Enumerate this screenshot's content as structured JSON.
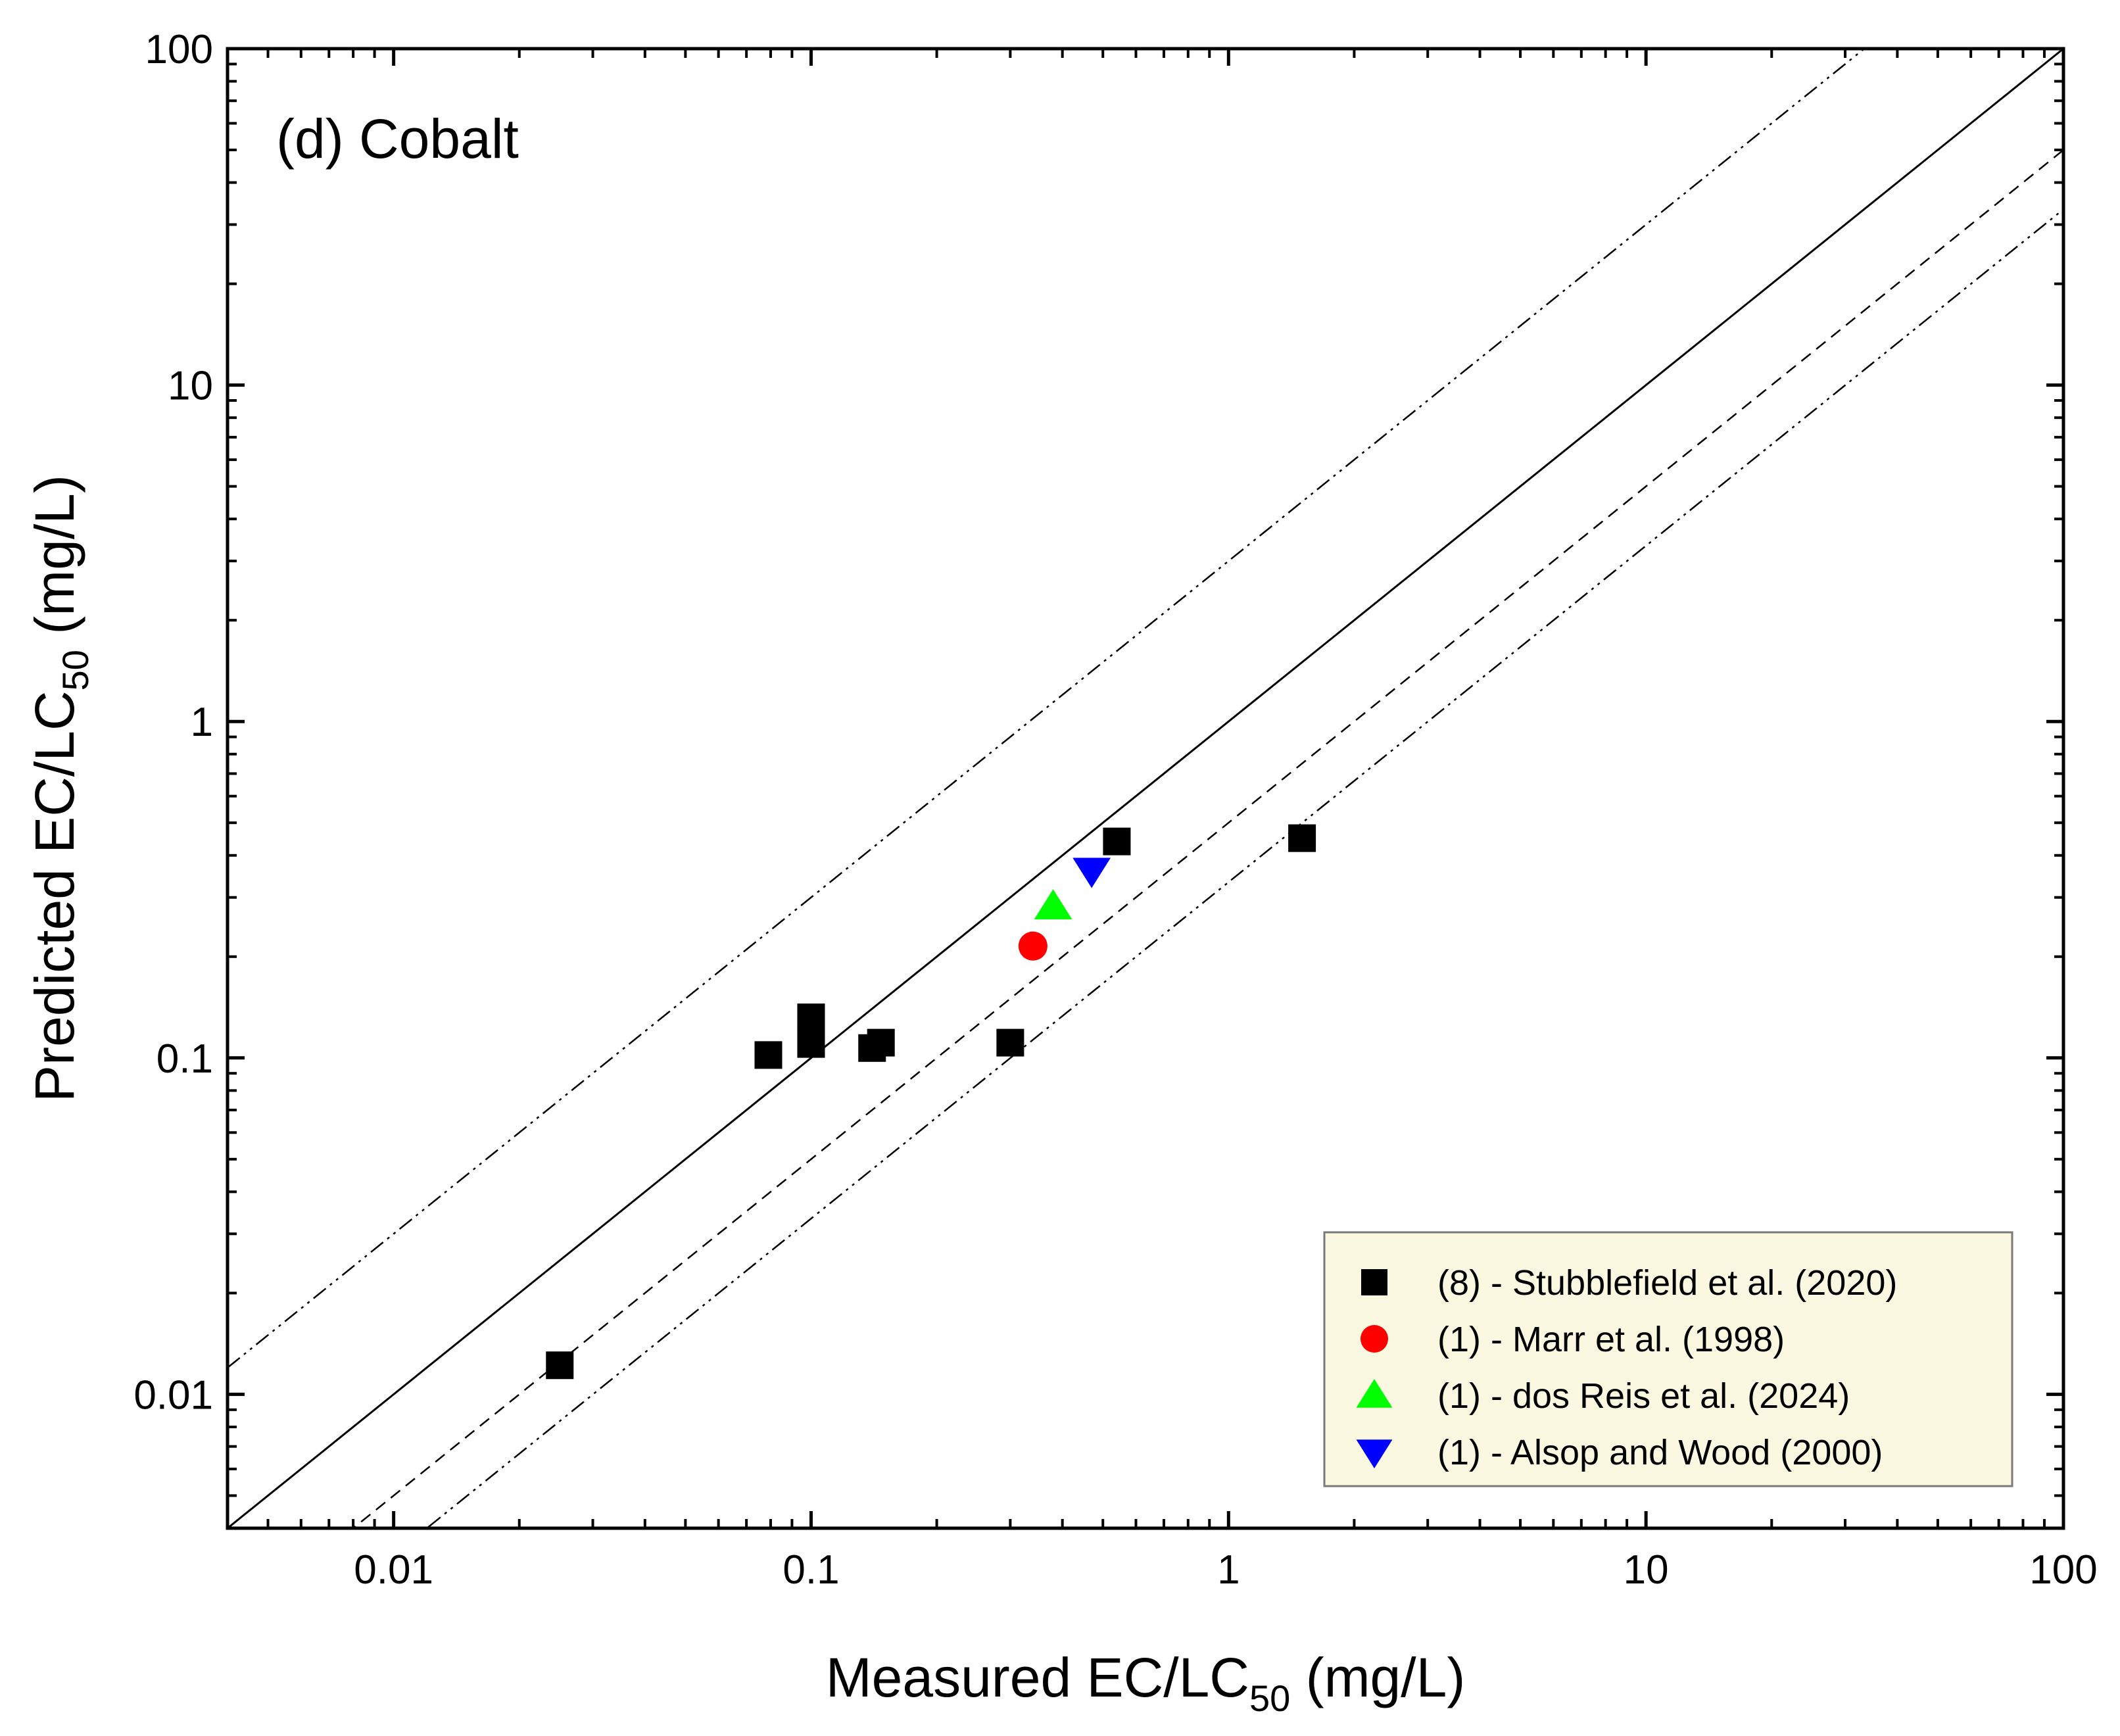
{
  "chart_data": {
    "type": "scatter",
    "panel_label": "(d) Cobalt",
    "xlabel": {
      "main": "Measured EC/LC",
      "sub": "50",
      "unit": " (mg/L)"
    },
    "ylabel": {
      "main": "Predicted EC/LC",
      "sub": "50",
      "unit": " (mg/L)"
    },
    "x_scale": "log",
    "y_scale": "log",
    "xlim": [
      0.004,
      100
    ],
    "ylim": [
      0.004,
      100
    ],
    "x_ticks": [
      {
        "value": 0.01,
        "label": "0.01"
      },
      {
        "value": 0.1,
        "label": "0.1"
      },
      {
        "value": 1,
        "label": "1"
      },
      {
        "value": 10,
        "label": "10"
      },
      {
        "value": 100,
        "label": "100"
      }
    ],
    "y_ticks": [
      {
        "value": 0.01,
        "label": "0.01"
      },
      {
        "value": 0.1,
        "label": "0.1"
      },
      {
        "value": 1,
        "label": "1"
      },
      {
        "value": 10,
        "label": "10"
      },
      {
        "value": 100,
        "label": "100"
      }
    ],
    "grid": false,
    "reference_lines": [
      {
        "style": "solid",
        "factor": 1
      },
      {
        "style": "dashed",
        "factor": 0.5
      },
      {
        "style": "dash-dot-dot",
        "factor": 0.333
      },
      {
        "style": "dash-dot-dot",
        "factor": 3
      }
    ],
    "legend_position": "bottom-right",
    "series": [
      {
        "name": "(8) - Stubblefield et al. (2020)",
        "marker": "square",
        "color": "#000000",
        "points": [
          {
            "x": 0.025,
            "y": 0.0122
          },
          {
            "x": 0.079,
            "y": 0.102
          },
          {
            "x": 0.1,
            "y": 0.132
          },
          {
            "x": 0.1,
            "y": 0.11
          },
          {
            "x": 0.14,
            "y": 0.107
          },
          {
            "x": 0.147,
            "y": 0.111
          },
          {
            "x": 0.3,
            "y": 0.111
          },
          {
            "x": 0.54,
            "y": 0.44
          },
          {
            "x": 1.5,
            "y": 0.45
          }
        ]
      },
      {
        "name": "(1) - Marr et al. (1998)",
        "marker": "circle",
        "color": "#ff0000",
        "points": [
          {
            "x": 0.34,
            "y": 0.215
          }
        ]
      },
      {
        "name": "(1) - dos Reis et al. (2024)",
        "marker": "triangle-up",
        "color": "#00ff00",
        "points": [
          {
            "x": 0.38,
            "y": 0.282
          }
        ]
      },
      {
        "name": "(1) - Alsop and Wood (2000)",
        "marker": "triangle-down",
        "color": "#0000ff",
        "points": [
          {
            "x": 0.47,
            "y": 0.36
          }
        ]
      }
    ]
  }
}
